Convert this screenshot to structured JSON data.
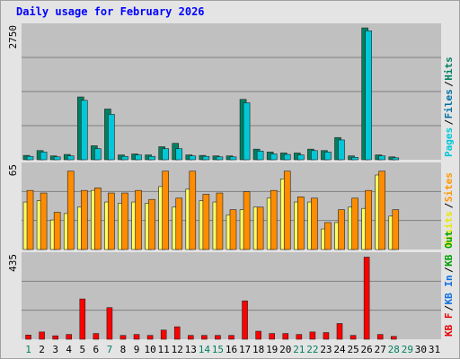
{
  "chart_data": {
    "type": "bar",
    "title": "Daily usage for February 2026",
    "categories": [
      "1",
      "2",
      "3",
      "4",
      "5",
      "6",
      "7",
      "8",
      "9",
      "10",
      "11",
      "12",
      "13",
      "14",
      "15",
      "16",
      "17",
      "18",
      "19",
      "20",
      "21",
      "22",
      "23",
      "24",
      "25",
      "26",
      "27",
      "28",
      "29",
      "30",
      "31"
    ],
    "weekend_days": [
      "1",
      "7",
      "14",
      "15",
      "21",
      "22",
      "28",
      "29"
    ],
    "panels": [
      {
        "name": "pages-files-hits",
        "ytick_label": "2750",
        "ymax": 2750,
        "right_labels": [
          {
            "text": "Pages",
            "color": "#00c8d8"
          },
          {
            "text": "Files",
            "color": "#0070a0"
          },
          {
            "text": "Hits",
            "color": "#008060"
          }
        ],
        "series": [
          {
            "name": "Hits",
            "color": "#008060",
            "values": [
              90,
              190,
              80,
              110,
              1300,
              290,
              1050,
              100,
              120,
              100,
              270,
              340,
              100,
              90,
              80,
              80,
              1250,
              220,
              160,
              140,
              140,
              220,
              190,
              460,
              80,
              2730,
              100,
              60,
              0,
              0,
              0
            ]
          },
          {
            "name": "Files",
            "color": "#00c8d8",
            "values": [
              70,
              160,
              60,
              80,
              1230,
              230,
              940,
              70,
              100,
              70,
              230,
              230,
              80,
              70,
              60,
              60,
              1180,
              180,
              120,
              110,
              100,
              190,
              160,
              410,
              50,
              2670,
              80,
              40,
              0,
              0,
              0
            ]
          }
        ]
      },
      {
        "name": "visits-sites",
        "ytick_label": "65",
        "ymax": 65,
        "right_labels": [
          {
            "text": "Visits",
            "color": "#e8e800"
          },
          {
            "text": "Sites",
            "color": "#ff9800"
          }
        ],
        "series": [
          {
            "name": "Visits",
            "color": "#ffff60",
            "values": [
              37,
              38,
              23,
              28,
              33,
              46,
              37,
              36,
              37,
              36,
              49,
              33,
              47,
              38,
              37,
              27,
              31,
              33,
              40,
              55,
              37,
              37,
              16,
              21,
              33,
              32,
              58,
              26,
              0,
              0,
              0
            ]
          },
          {
            "name": "Sites",
            "color": "#ff8c00",
            "values": [
              46,
              44,
              29,
              61,
              46,
              48,
              44,
              44,
              46,
              39,
              61,
              40,
              61,
              43,
              44,
              31,
              45,
              33,
              46,
              61,
              41,
              40,
              21,
              31,
              40,
              46,
              61,
              31,
              0,
              0,
              0
            ]
          }
        ]
      },
      {
        "name": "kb",
        "ytick_label": "435",
        "ymax": 435,
        "right_labels": [
          {
            "text": "KB F",
            "color": "#e80000"
          },
          {
            "text": "KB In",
            "color": "#1070e0"
          },
          {
            "text": "KB Out",
            "color": "#00a000"
          }
        ],
        "series": [
          {
            "name": "KB F",
            "color": "#ff0000",
            "values": [
              22,
              38,
              18,
              25,
              210,
              30,
              165,
              20,
              25,
              20,
              48,
              65,
              20,
              20,
              20,
              20,
              200,
              42,
              30,
              30,
              25,
              38,
              35,
              82,
              20,
              428,
              25,
              15,
              0,
              0,
              0
            ]
          }
        ]
      }
    ]
  },
  "colors": {
    "plot_bg": "#c0c0c0",
    "gridline": "#808080",
    "frame_bg": "#e0e0e0",
    "title_color": "#0000ff",
    "weekday_label": "#000000",
    "weekend_label": "#008060"
  }
}
